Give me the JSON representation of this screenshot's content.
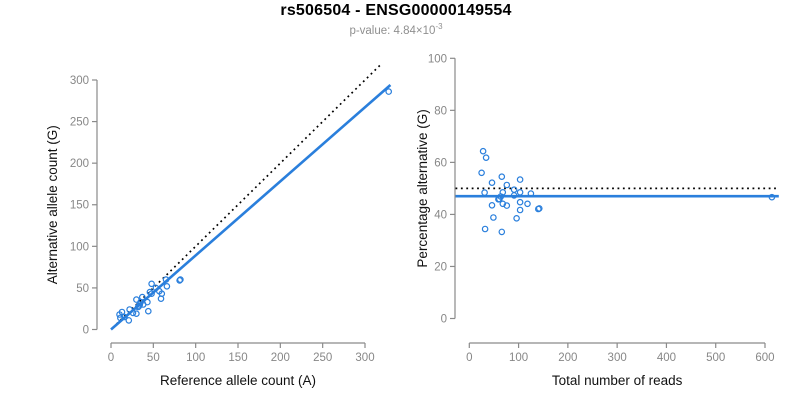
{
  "header": {
    "title": "rs506504 - ENSG00000149554",
    "subtitle_base": "p-value: 4.84×10",
    "subtitle_exponent": "-3"
  },
  "colors": {
    "accent_blue": "#2a7fdc",
    "dotted_black": "#000000",
    "axis_gray": "#8a8a8a",
    "tick_label_gray": "#878787",
    "axis_title_black": "#111111"
  },
  "chart_data": [
    {
      "type": "scatter",
      "panel": "left",
      "xlabel": "Reference allele count (A)",
      "ylabel": "Alternative allele count (G)",
      "xticks": [
        0,
        50,
        100,
        150,
        200,
        250,
        300
      ],
      "yticks": [
        0,
        50,
        100,
        150,
        200,
        250,
        300
      ],
      "xlim": [
        0,
        330
      ],
      "ylim": [
        0,
        325
      ],
      "grid": false,
      "marker": "open-circle",
      "points": [
        [
          10,
          18
        ],
        [
          13,
          21
        ],
        [
          11,
          14
        ],
        [
          16,
          15
        ],
        [
          21,
          11
        ],
        [
          22,
          24
        ],
        [
          26,
          20
        ],
        [
          30,
          36
        ],
        [
          30,
          19
        ],
        [
          32,
          27
        ],
        [
          33,
          28
        ],
        [
          34,
          30
        ],
        [
          35,
          33
        ],
        [
          37,
          39
        ],
        [
          38,
          30
        ],
        [
          43,
          33
        ],
        [
          44,
          22
        ],
        [
          46,
          45
        ],
        [
          48,
          55
        ],
        [
          48,
          43
        ],
        [
          53,
          50
        ],
        [
          57,
          46
        ],
        [
          59,
          37
        ],
        [
          60,
          43
        ],
        [
          65,
          60
        ],
        [
          66,
          52
        ],
        [
          81,
          59
        ],
        [
          82,
          60
        ],
        [
          328,
          286
        ]
      ],
      "lines": [
        {
          "name": "identity-line",
          "style": "dotted",
          "color": "#000000",
          "width": 1.7,
          "points": [
            [
              2,
              2
            ],
            [
              318,
              318
            ]
          ]
        },
        {
          "name": "fit-line",
          "style": "solid",
          "color": "#2a7fdc",
          "width": 2.6,
          "points": [
            [
              0,
              0
            ],
            [
              330,
              294
            ]
          ]
        }
      ]
    },
    {
      "type": "scatter",
      "panel": "right",
      "xlabel": "Total number of reads",
      "ylabel": "Percentage alternative (G)",
      "xticks": [
        0,
        100,
        200,
        300,
        400,
        500,
        600
      ],
      "yticks": [
        0,
        20,
        40,
        60,
        80,
        100
      ],
      "xlim": [
        0,
        630
      ],
      "ylim": [
        0,
        100
      ],
      "grid": false,
      "marker": "open-circle",
      "points": [
        [
          28,
          64.3
        ],
        [
          34,
          61.8
        ],
        [
          25,
          56.0
        ],
        [
          31,
          48.4
        ],
        [
          32,
          34.4
        ],
        [
          46,
          52.2
        ],
        [
          46,
          43.5
        ],
        [
          66,
          54.5
        ],
        [
          49,
          38.8
        ],
        [
          59,
          45.8
        ],
        [
          61,
          45.9
        ],
        [
          64,
          46.9
        ],
        [
          68,
          48.5
        ],
        [
          76,
          51.3
        ],
        [
          68,
          44.1
        ],
        [
          76,
          43.4
        ],
        [
          66,
          33.3
        ],
        [
          91,
          49.5
        ],
        [
          103,
          53.4
        ],
        [
          91,
          47.3
        ],
        [
          103,
          48.5
        ],
        [
          103,
          44.7
        ],
        [
          96,
          38.5
        ],
        [
          103,
          41.7
        ],
        [
          125,
          48.0
        ],
        [
          118,
          44.1
        ],
        [
          140,
          42.1
        ],
        [
          142,
          42.3
        ],
        [
          614,
          46.6
        ]
      ],
      "lines": [
        {
          "name": "expected-50pct-line",
          "style": "dotted",
          "color": "#000000",
          "width": 1.7,
          "points": [
            [
              -28,
              50
            ],
            [
              628,
              50
            ]
          ]
        },
        {
          "name": "fit-line",
          "style": "solid",
          "color": "#2a7fdc",
          "width": 2.6,
          "points": [
            [
              -28,
              47
            ],
            [
              628,
              47
            ]
          ]
        }
      ]
    }
  ]
}
